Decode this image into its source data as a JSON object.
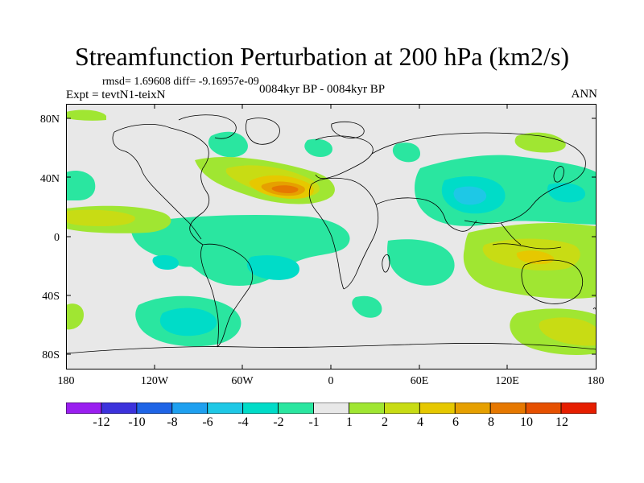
{
  "title": "Streamfunction Perturbation at 200 hPa (km2/s)",
  "stats": "rmsd= 1.69608  diff= -9.16957e-09",
  "experiment": "Expt = tevtN1-teixN",
  "period": "0084kyr BP - 0084kyr BP",
  "season": "ANN",
  "lat_labels": [
    "80N",
    "40N",
    "0",
    "40S",
    "80S"
  ],
  "lon_labels": [
    "180",
    "120W",
    "60W",
    "0",
    "60E",
    "120E",
    "180"
  ],
  "colorbar": {
    "labels": [
      "-12",
      "-10",
      "-8",
      "-6",
      "-4",
      "-2",
      "-1",
      "1",
      "2",
      "4",
      "6",
      "8",
      "10",
      "12"
    ],
    "colors": [
      "#9a1ef0",
      "#3c32dc",
      "#1e64e6",
      "#1ea0f0",
      "#1ec8e6",
      "#00dcc8",
      "#2ae6a0",
      "#e8e8e8",
      "#a0e632",
      "#c8dc14",
      "#e6c800",
      "#e6a000",
      "#e67800",
      "#e65000",
      "#e61e00"
    ]
  }
}
